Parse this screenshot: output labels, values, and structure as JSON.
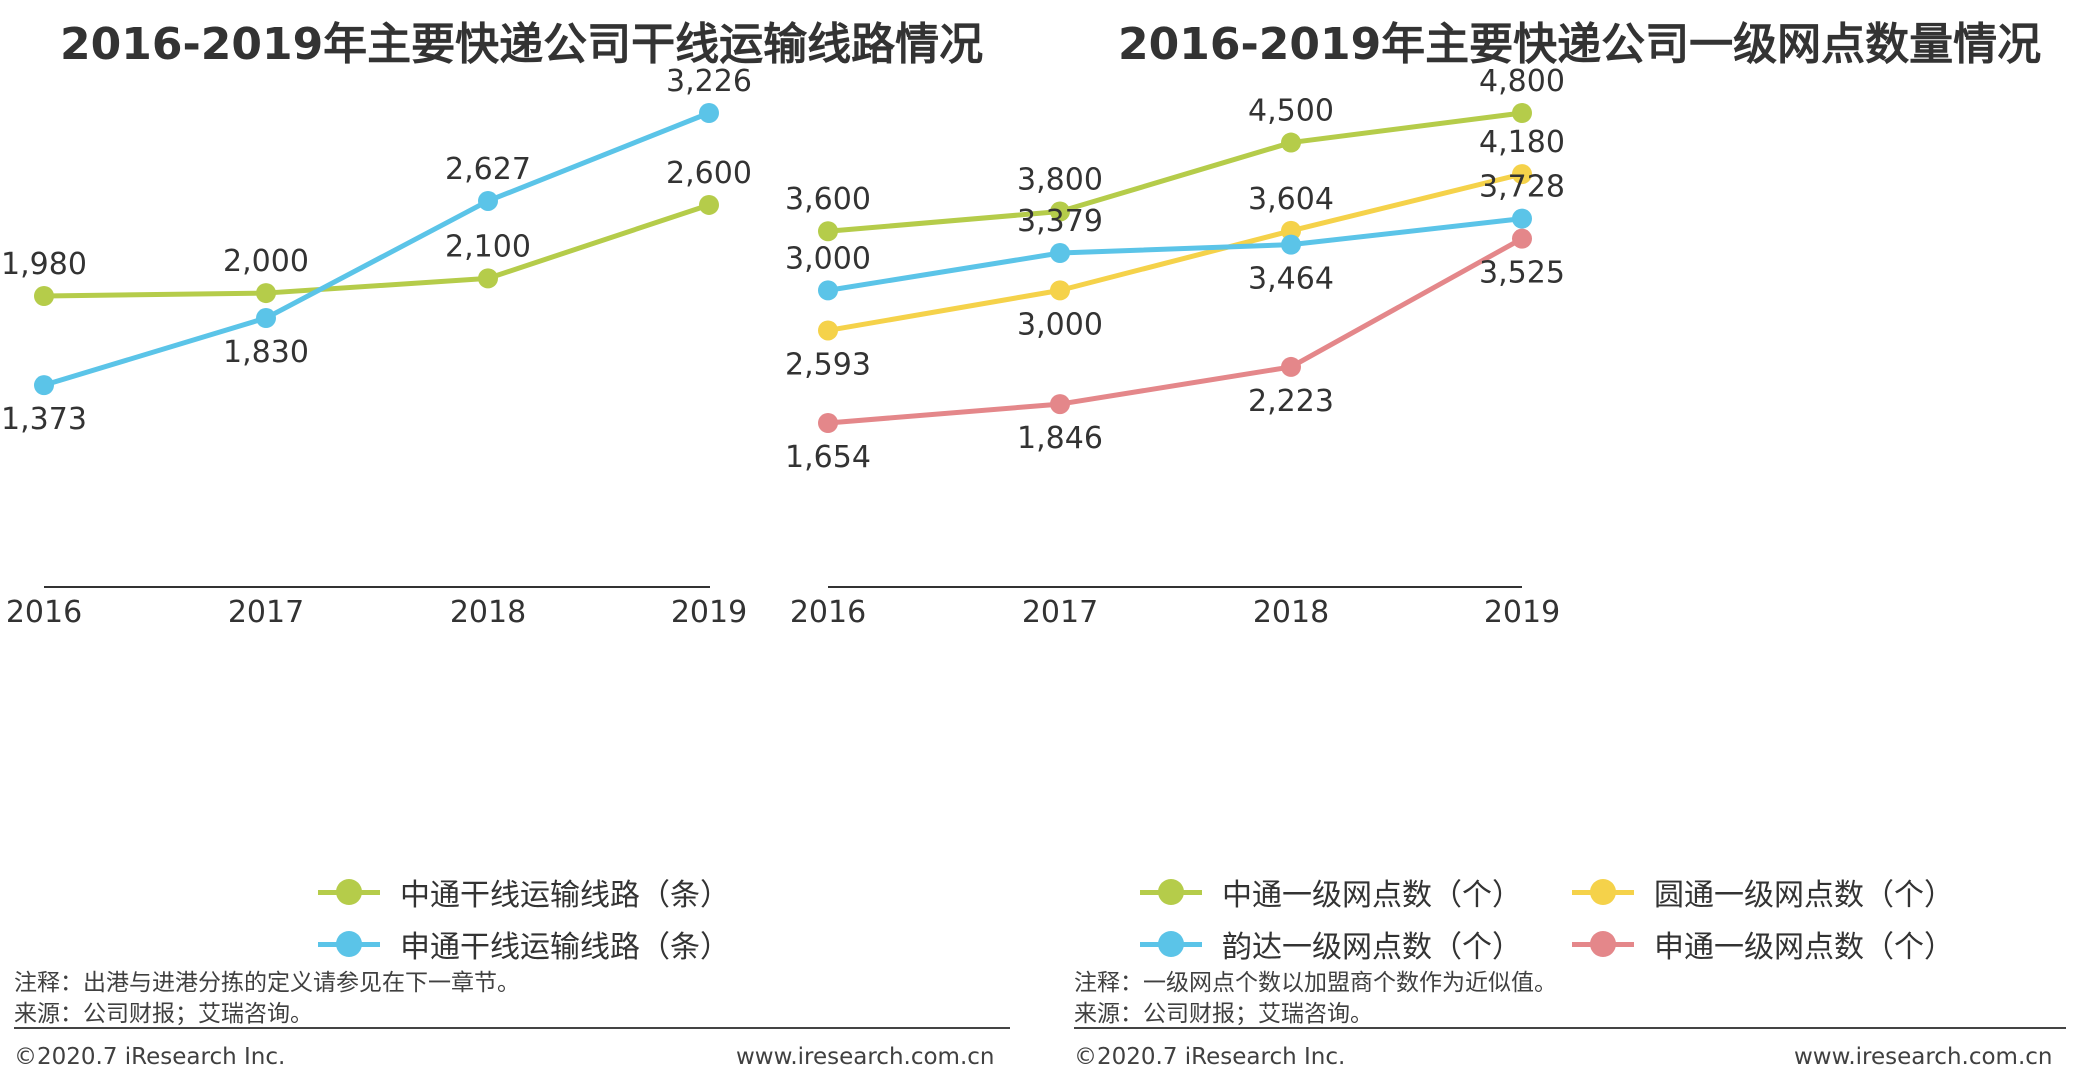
{
  "left": {
    "title": "2016-2019年主要快递公司干线运输线路情况",
    "note": "注释：出港与进港分拣的定义请参见在下一章节。",
    "source": "来源：公司财报；艾瑞咨询。",
    "copyright": "©2020.7 iResearch Inc.",
    "website": "www.iresearch.com.cn"
  },
  "right": {
    "title": "2016-2019年主要快递公司一级网点数量情况",
    "note": "注释：一级网点个数以加盟商个数作为近似值。",
    "source": "来源：公司财报；艾瑞咨询。",
    "copyright": "©2020.7 iResearch Inc.",
    "website": "www.iresearch.com.cn"
  },
  "chart_data": [
    {
      "type": "line",
      "title": "2016-2019年主要快递公司干线运输线路情况",
      "x": [
        "2016",
        "2017",
        "2018",
        "2019"
      ],
      "series": [
        {
          "name": "中通干线运输线路（条）",
          "color": "#b5cc4a",
          "values": [
            1980,
            2000,
            2100,
            2600
          ],
          "labels": [
            "1,980",
            "2,000",
            "2,100",
            "2,600"
          ]
        },
        {
          "name": "申通干线运输线路（条）",
          "color": "#5bc4e8",
          "values": [
            1373,
            1830,
            2627,
            3226
          ],
          "labels": [
            "1,373",
            "1,830",
            "2,627",
            "3,226"
          ]
        }
      ],
      "grid": false,
      "legend": "bottom"
    },
    {
      "type": "line",
      "title": "2016-2019年主要快递公司一级网点数量情况",
      "x": [
        "2016",
        "2017",
        "2018",
        "2019"
      ],
      "series": [
        {
          "name": "中通一级网点数（个）",
          "color": "#b5cc4a",
          "values": [
            3600,
            3800,
            4500,
            4800
          ],
          "labels": [
            "3,600",
            "3,800",
            "4,500",
            "4,800"
          ]
        },
        {
          "name": "圆通一级网点数（个）",
          "color": "#f5d24a",
          "values": [
            2593,
            3000,
            3604,
            4180
          ],
          "labels": [
            "2,593",
            "3,000",
            "3,604",
            "4,180"
          ]
        },
        {
          "name": "韵达一级网点数（个）",
          "color": "#5bc4e8",
          "values": [
            3000,
            3379,
            3464,
            3728
          ],
          "labels": [
            "3,000",
            "3,379",
            "3,464",
            "3,728"
          ]
        },
        {
          "name": "申通一级网点数（个）",
          "color": "#e4878a",
          "values": [
            1654,
            1846,
            2223,
            3525
          ],
          "labels": [
            "1,654",
            "1,846",
            "2,223",
            "3,525"
          ]
        }
      ],
      "grid": false,
      "legend": "bottom"
    }
  ]
}
